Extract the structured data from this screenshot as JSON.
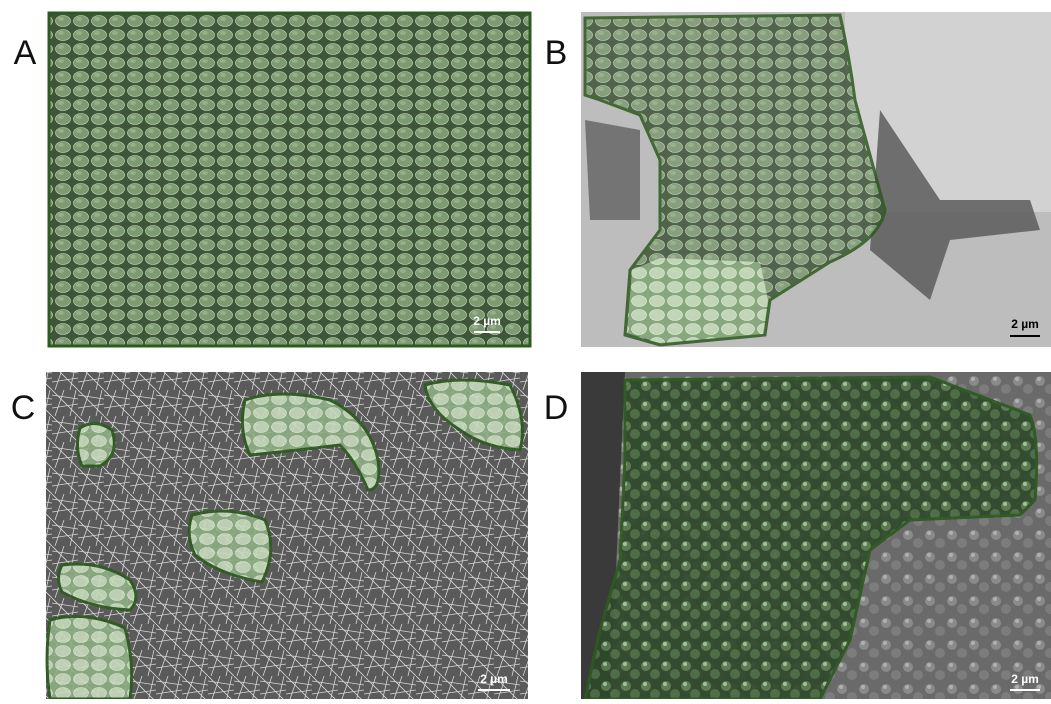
{
  "panels": [
    {
      "label": "A",
      "scale_bar": "2 µm"
    },
    {
      "label": "B",
      "scale_bar": "2 µm"
    },
    {
      "label": "C",
      "scale_bar": "2 µm"
    },
    {
      "label": "D",
      "scale_bar": "2 µm"
    }
  ]
}
